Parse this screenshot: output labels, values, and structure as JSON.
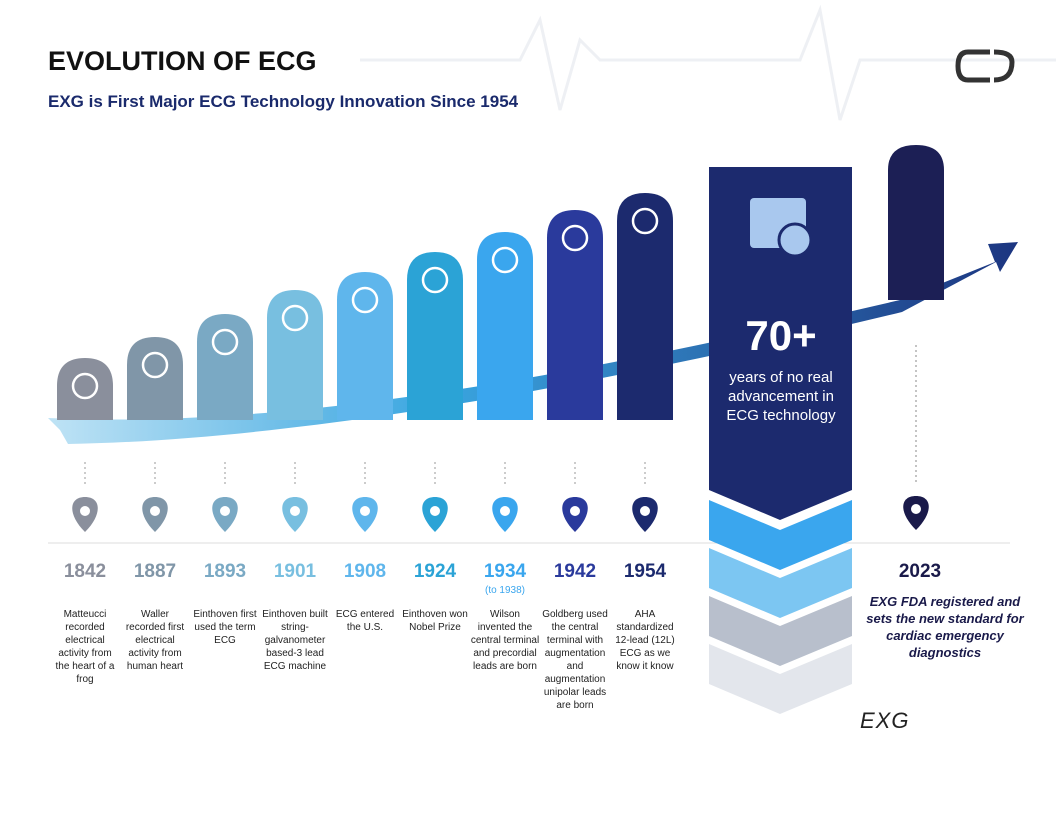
{
  "header": {
    "title": "EVOLUTION OF ECG",
    "subtitle": "EXG is First Major ECG Technology Innovation Since 1954"
  },
  "milestones": [
    {
      "year": "1842",
      "description": "Matteucci recorded electrical activity from the heart of a frog",
      "color": "#8a8f9c"
    },
    {
      "year": "1887",
      "description": "Waller recorded first electrical activity from human heart",
      "color": "#8096a8"
    },
    {
      "year": "1893",
      "description": "Einthoven first used the term ECG",
      "color": "#7aa9c4"
    },
    {
      "year": "1901",
      "description": "Einthoven built string-galvanometer based-3 lead ECG machine",
      "color": "#78bfe0"
    },
    {
      "year": "1908",
      "description": "ECG entered the U.S.",
      "color": "#5fb6ec"
    },
    {
      "year": "1924",
      "description": "Einthoven won Nobel Prize",
      "color": "#2ba3d6"
    },
    {
      "year": "1934",
      "note": "(to 1938)",
      "description": "Wilson invented the central terminal and precordial leads are born",
      "color": "#3aa6ee"
    },
    {
      "year": "1942",
      "description": "Goldberg used the central terminal with augmentation and augmentation unipolar leads are born",
      "color": "#2a3a9c"
    },
    {
      "year": "1954",
      "description": "AHA standardized 12-lead (12L) ECG as we know it know",
      "color": "#1c2a6e"
    }
  ],
  "gap": {
    "value": "70+",
    "text": "years of no real advancement in ECG technology"
  },
  "latest": {
    "year": "2023",
    "description": "EXG FDA registered and sets the new standard for cardiac emergency diagnostics",
    "product": "EXG"
  }
}
